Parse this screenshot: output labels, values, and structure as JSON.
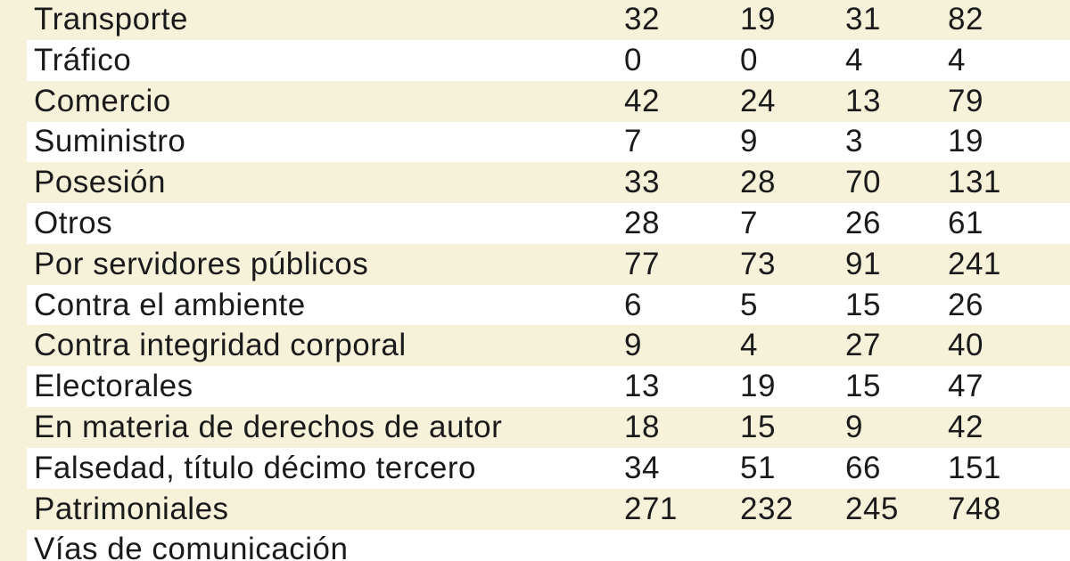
{
  "table": {
    "rows": [
      {
        "label": "Transporte",
        "values": [
          32,
          19,
          31,
          82
        ]
      },
      {
        "label": "Tráfico",
        "values": [
          0,
          0,
          4,
          4
        ]
      },
      {
        "label": "Comercio",
        "values": [
          42,
          24,
          13,
          79
        ]
      },
      {
        "label": "Suministro",
        "values": [
          7,
          9,
          3,
          19
        ]
      },
      {
        "label": "Posesión",
        "values": [
          33,
          28,
          70,
          131
        ]
      },
      {
        "label": "Otros",
        "values": [
          28,
          7,
          26,
          61
        ]
      },
      {
        "label": "Por servidores públicos",
        "values": [
          77,
          73,
          91,
          241
        ]
      },
      {
        "label": "Contra el ambiente",
        "values": [
          6,
          5,
          15,
          26
        ]
      },
      {
        "label": "Contra integridad corporal",
        "values": [
          9,
          4,
          27,
          40
        ]
      },
      {
        "label": "Electorales",
        "values": [
          13,
          19,
          15,
          47
        ]
      },
      {
        "label": "En materia de derechos de autor",
        "values": [
          18,
          15,
          9,
          42
        ]
      },
      {
        "label": "Falsedad, título décimo tercero",
        "values": [
          34,
          51,
          66,
          151
        ]
      },
      {
        "label": "Patrimoniales",
        "values": [
          271,
          232,
          245,
          748
        ]
      },
      {
        "label": "Vías de comunicación",
        "values": []
      }
    ]
  }
}
